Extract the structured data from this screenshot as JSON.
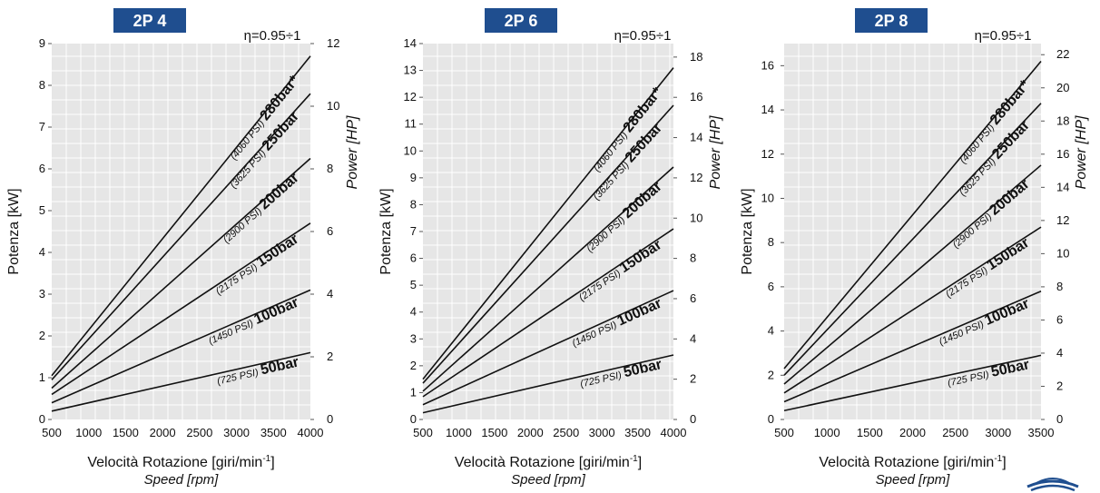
{
  "colors": {
    "badge": "#1f4e8f",
    "badge_text": "#ffffff",
    "plot_bg": "#e6e6e6",
    "grid": "#ffffff",
    "line": "#111111",
    "logo": "#1f4e8f"
  },
  "icons": {
    "brand_logo": "wave-logo-icon"
  },
  "chart_data": [
    {
      "type": "line",
      "title": "2P 4",
      "subtitle": "η=0.95÷1",
      "xlabel": "Velocità Rotazione [giri/min",
      "xlabel_sup": "-1",
      "xlabel_close": "]",
      "xlabel2": "Speed [rpm]",
      "ylabel": "Potenza [kW]",
      "y2label": "Power [HP]",
      "xlim": [
        500,
        4000
      ],
      "ylim": [
        0,
        9
      ],
      "y2lim": [
        0,
        12
      ],
      "xticks": [
        "500",
        "1000",
        "1500",
        "2000",
        "2500",
        "3000",
        "3500",
        "4000"
      ],
      "xtick_values": [
        500,
        1000,
        1500,
        2000,
        2500,
        3000,
        3500,
        4000
      ],
      "yticks": [
        "0",
        "1",
        "2",
        "3",
        "4",
        "5",
        "6",
        "7",
        "8",
        "9"
      ],
      "ytick_values": [
        0,
        1,
        2,
        3,
        4,
        5,
        6,
        7,
        8,
        9
      ],
      "y2ticks": [
        "0",
        "2",
        "4",
        "6",
        "8",
        "10",
        "12"
      ],
      "y2tick_values": [
        0,
        2,
        4,
        6,
        8,
        10,
        12
      ],
      "series": [
        {
          "name": "50bar",
          "psi": "(725 PSI)",
          "x": [
            500,
            4000
          ],
          "y": [
            0.2,
            1.6
          ]
        },
        {
          "name": "100bar",
          "psi": "(1450 PSI)",
          "x": [
            500,
            4000
          ],
          "y": [
            0.4,
            3.1
          ]
        },
        {
          "name": "150bar",
          "psi": "(2175 PSI)",
          "x": [
            500,
            4000
          ],
          "y": [
            0.6,
            4.7
          ]
        },
        {
          "name": "200bar",
          "psi": "(2900 PSI)",
          "x": [
            500,
            4000
          ],
          "y": [
            0.75,
            6.25
          ]
        },
        {
          "name": "250bar",
          "psi": "(3625 PSI)",
          "x": [
            500,
            4000
          ],
          "y": [
            0.95,
            7.8
          ]
        },
        {
          "name": "280bar*",
          "psi": "(4060 PSI)",
          "x": [
            500,
            4000
          ],
          "y": [
            1.05,
            8.7
          ]
        }
      ]
    },
    {
      "type": "line",
      "title": "2P 6",
      "subtitle": "η=0.95÷1",
      "xlabel": "Velocità Rotazione [giri/min",
      "xlabel_sup": "-1",
      "xlabel_close": "]",
      "xlabel2": "Speed [rpm]",
      "ylabel": "Potenza [kW]",
      "y2label": "Power [HP]",
      "xlim": [
        500,
        4000
      ],
      "ylim": [
        0,
        14
      ],
      "y2lim": [
        0,
        18.67
      ],
      "xticks": [
        "500",
        "1000",
        "1500",
        "2000",
        "2500",
        "3000",
        "3500",
        "4000"
      ],
      "xtick_values": [
        500,
        1000,
        1500,
        2000,
        2500,
        3000,
        3500,
        4000
      ],
      "yticks": [
        "0",
        "1",
        "2",
        "3",
        "4",
        "5",
        "6",
        "7",
        "8",
        "9",
        "10",
        "11",
        "12",
        "13",
        "14"
      ],
      "ytick_values": [
        0,
        1,
        2,
        3,
        4,
        5,
        6,
        7,
        8,
        9,
        10,
        11,
        12,
        13,
        14
      ],
      "y2ticks": [
        "0",
        "2",
        "4",
        "6",
        "8",
        "10",
        "12",
        "14",
        "16",
        "18"
      ],
      "y2tick_values": [
        0,
        2,
        4,
        6,
        8,
        10,
        12,
        14,
        16,
        18
      ],
      "series": [
        {
          "name": "50bar",
          "psi": "(725 PSI)",
          "x": [
            500,
            4000
          ],
          "y": [
            0.25,
            2.4
          ]
        },
        {
          "name": "100bar",
          "psi": "(1450 PSI)",
          "x": [
            500,
            4000
          ],
          "y": [
            0.55,
            4.8
          ]
        },
        {
          "name": "150bar",
          "psi": "(2175 PSI)",
          "x": [
            500,
            4000
          ],
          "y": [
            0.85,
            7.1
          ]
        },
        {
          "name": "200bar",
          "psi": "(2900 PSI)",
          "x": [
            500,
            4000
          ],
          "y": [
            1.05,
            9.4
          ]
        },
        {
          "name": "250bar",
          "psi": "(3625 PSI)",
          "x": [
            500,
            4000
          ],
          "y": [
            1.35,
            11.7
          ]
        },
        {
          "name": "280bar*",
          "psi": "(4060 PSI)",
          "x": [
            500,
            4000
          ],
          "y": [
            1.5,
            13.1
          ]
        }
      ]
    },
    {
      "type": "line",
      "title": "2P 8",
      "subtitle": "η=0.95÷1",
      "xlabel": "Velocità Rotazione [giri/min",
      "xlabel_sup": "-1",
      "xlabel_close": "]",
      "xlabel2": "Speed [rpm]",
      "ylabel": "Potenza [kW]",
      "y2label": "Power [HP]",
      "xlim": [
        500,
        3500
      ],
      "ylim": [
        0,
        17
      ],
      "y2lim": [
        0,
        22.67
      ],
      "xticks": [
        "500",
        "1000",
        "1500",
        "2000",
        "2500",
        "3000",
        "3500"
      ],
      "xtick_values": [
        500,
        1000,
        1500,
        2000,
        2500,
        3000,
        3500
      ],
      "yticks": [
        "0",
        "2",
        "4",
        "6",
        "8",
        "10",
        "12",
        "14",
        "16"
      ],
      "ytick_values": [
        0,
        2,
        4,
        6,
        8,
        10,
        12,
        14,
        16
      ],
      "y2ticks": [
        "0",
        "2",
        "4",
        "6",
        "8",
        "10",
        "12",
        "14",
        "16",
        "18",
        "20",
        "22"
      ],
      "y2tick_values": [
        0,
        2,
        4,
        6,
        8,
        10,
        12,
        14,
        16,
        18,
        20,
        22
      ],
      "series": [
        {
          "name": "50bar",
          "psi": "(725 PSI)",
          "x": [
            500,
            3500
          ],
          "y": [
            0.4,
            2.9
          ]
        },
        {
          "name": "100bar",
          "psi": "(1450 PSI)",
          "x": [
            500,
            3500
          ],
          "y": [
            0.8,
            5.8
          ]
        },
        {
          "name": "150bar",
          "psi": "(2175 PSI)",
          "x": [
            500,
            3500
          ],
          "y": [
            1.2,
            8.7
          ]
        },
        {
          "name": "200bar",
          "psi": "(2900 PSI)",
          "x": [
            500,
            3500
          ],
          "y": [
            1.6,
            11.5
          ]
        },
        {
          "name": "250bar",
          "psi": "(3625 PSI)",
          "x": [
            500,
            3500
          ],
          "y": [
            2.0,
            14.3
          ]
        },
        {
          "name": "280bar*",
          "psi": "(4060 PSI)",
          "x": [
            500,
            3500
          ],
          "y": [
            2.3,
            16.2
          ]
        }
      ]
    }
  ]
}
